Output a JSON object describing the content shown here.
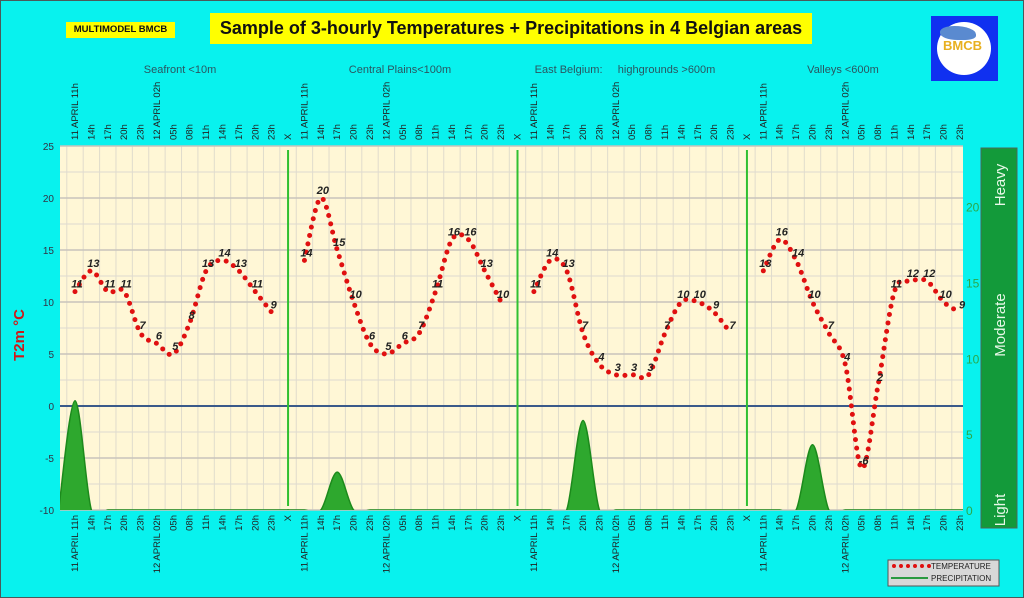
{
  "brand_label": "MULTIMODEL BMCB",
  "title": "Sample of 3-hourly Temperatures + Precipitations in 4 Belgian areas",
  "logo_text": "BMCB",
  "colors": {
    "background": "#08f2ee",
    "plot_bg": "#fff7d6",
    "temperature": "#e01010",
    "precipitation": "#2ea82e",
    "title_bg": "#ffff00",
    "zero_line": "#3a5a8a",
    "separator": "#30c030",
    "intensity_bar": "#139a3a"
  },
  "chart_data": {
    "type": "line+area",
    "ylabel": "T2m °C",
    "ylim": [
      -10,
      25
    ],
    "yticks": [
      25,
      20,
      15,
      10,
      5,
      0,
      -5,
      -10
    ],
    "y2lim": [
      0,
      24
    ],
    "y2ticks": [
      20,
      15,
      10,
      5,
      0
    ],
    "y2_intensity_labels": [
      "Heavy",
      "Moderate",
      "Light"
    ],
    "grid": true,
    "legend_position": "bottom-right",
    "legend": [
      "TEMPERATURE",
      "PRECIPITATION"
    ],
    "separator_label": "X",
    "categories": [
      "11 APRIL 11h",
      "14h",
      "17h",
      "20h",
      "23h",
      "12 APRIL 02h",
      "05h",
      "08h",
      "11h",
      "14h",
      "17h",
      "20h",
      "23h"
    ],
    "panels": [
      {
        "name": "Seafront <10m",
        "temperature": [
          11,
          13,
          11,
          11,
          7,
          6,
          5,
          8,
          13,
          14,
          13,
          11,
          9
        ],
        "precipitation": [
          7.2,
          0,
          0,
          0,
          0,
          0,
          0,
          0,
          0,
          0,
          0,
          0,
          0
        ]
      },
      {
        "name": "Central Plains<100m",
        "temperature": [
          14,
          20,
          15,
          10,
          6,
          5,
          6,
          7,
          11,
          16,
          16,
          13,
          10
        ],
        "precipitation": [
          0,
          0,
          2.5,
          0,
          0,
          0,
          0,
          0,
          0,
          0,
          0,
          0,
          0
        ]
      },
      {
        "name": "East Belgium:     highgrounds >600m",
        "temperature": [
          11,
          14,
          13,
          7,
          4,
          3,
          3,
          3,
          7,
          10,
          10,
          9,
          7
        ],
        "precipitation": [
          0,
          0,
          0,
          5.9,
          0,
          0,
          0,
          0,
          0,
          0,
          0,
          0,
          0
        ]
      },
      {
        "name": "Valleys <600m",
        "temperature": [
          13,
          16,
          14,
          10,
          7,
          4,
          -6,
          2,
          11,
          12,
          12,
          10,
          9
        ],
        "precipitation": [
          0,
          0,
          0,
          4.3,
          0,
          0,
          0,
          0,
          0,
          0,
          0,
          0,
          0
        ]
      }
    ]
  }
}
